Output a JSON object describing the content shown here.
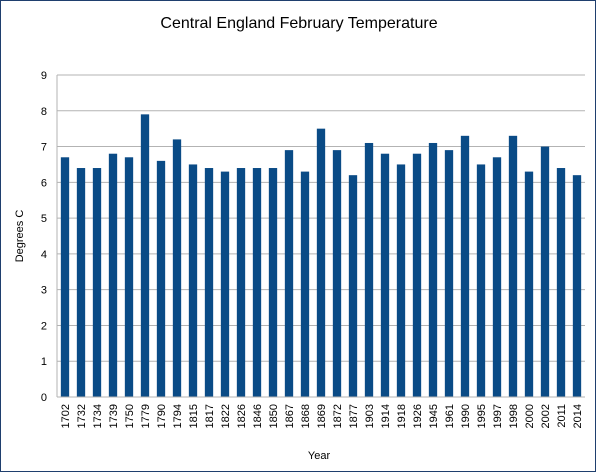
{
  "chart_data": {
    "type": "bar",
    "title": "Central England February Temperature",
    "xlabel": "Year",
    "ylabel": "Degrees C",
    "ylim": [
      0,
      9
    ],
    "yticks": [
      0,
      1,
      2,
      3,
      4,
      5,
      6,
      7,
      8,
      9
    ],
    "grid": true,
    "legend": "none",
    "bar_color": "#0a4b86",
    "grid_color": "#b3b3b3",
    "categories": [
      "1702",
      "1732",
      "1734",
      "1739",
      "1750",
      "1779",
      "1790",
      "1794",
      "1815",
      "1817",
      "1822",
      "1826",
      "1846",
      "1850",
      "1867",
      "1868",
      "1869",
      "1872",
      "1877",
      "1903",
      "1914",
      "1918",
      "1926",
      "1945",
      "1961",
      "1990",
      "1995",
      "1997",
      "1998",
      "2000",
      "2002",
      "2011",
      "2014"
    ],
    "values": [
      6.7,
      6.4,
      6.4,
      6.8,
      6.7,
      7.9,
      6.6,
      7.2,
      6.5,
      6.4,
      6.3,
      6.4,
      6.4,
      6.4,
      6.9,
      6.3,
      7.5,
      6.9,
      6.2,
      7.1,
      6.8,
      6.5,
      6.8,
      7.1,
      6.9,
      7.3,
      6.5,
      6.7,
      7.3,
      6.3,
      7.0,
      6.4,
      6.2
    ]
  }
}
